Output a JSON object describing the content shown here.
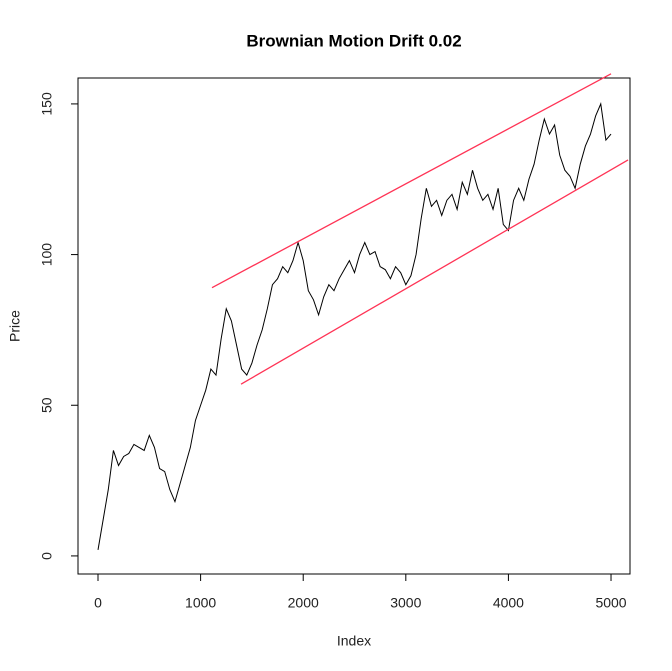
{
  "chart_data": {
    "type": "line",
    "title": "Brownian Motion Drift 0.02",
    "x_label": "Index",
    "y_label": "Price",
    "xlim": [
      -195,
      5185
    ],
    "ylim": [
      -6,
      158.6
    ],
    "xticks": [
      0,
      1000,
      2000,
      3000,
      4000,
      5000
    ],
    "yticks": [
      0,
      50,
      100,
      150
    ],
    "x": [
      0,
      50,
      100,
      150,
      200,
      250,
      300,
      350,
      400,
      450,
      500,
      550,
      600,
      650,
      700,
      750,
      800,
      850,
      900,
      950,
      1000,
      1050,
      1100,
      1150,
      1200,
      1250,
      1300,
      1350,
      1400,
      1450,
      1500,
      1550,
      1600,
      1650,
      1700,
      1750,
      1800,
      1850,
      1900,
      1950,
      2000,
      2050,
      2100,
      2150,
      2200,
      2250,
      2300,
      2350,
      2400,
      2450,
      2500,
      2550,
      2600,
      2650,
      2700,
      2750,
      2800,
      2850,
      2900,
      2950,
      3000,
      3050,
      3100,
      3150,
      3200,
      3250,
      3300,
      3350,
      3400,
      3450,
      3500,
      3550,
      3600,
      3650,
      3700,
      3750,
      3800,
      3850,
      3900,
      3950,
      4000,
      4050,
      4100,
      4150,
      4200,
      4250,
      4300,
      4350,
      4400,
      4450,
      4500,
      4550,
      4600,
      4650,
      4700,
      4750,
      4800,
      4850,
      4900,
      4950,
      5000
    ],
    "series": [
      {
        "color": "#000000",
        "values": [
          2,
          12,
          22,
          35,
          30,
          33,
          34,
          37,
          36,
          35,
          40,
          36,
          29,
          28,
          22,
          18,
          24,
          30,
          36,
          45,
          50,
          55,
          62,
          60,
          72,
          82,
          78,
          70,
          62,
          60,
          64,
          70,
          75,
          82,
          90,
          92,
          96,
          94,
          98,
          104,
          98,
          88,
          85,
          80,
          86,
          90,
          88,
          92,
          95,
          98,
          94,
          100,
          104,
          100,
          101,
          96,
          95,
          92,
          96,
          94,
          90,
          93,
          100,
          112,
          122,
          116,
          118,
          113,
          118,
          120,
          115,
          124,
          120,
          128,
          122,
          118,
          120,
          115,
          122,
          110,
          108,
          118,
          122,
          118,
          125,
          130,
          138,
          145,
          140,
          143,
          133,
          128,
          126,
          122,
          130,
          136,
          140,
          146,
          150,
          138,
          140
        ]
      },
      {
        "color": "#ff3355",
        "x": [
          1111,
          5000
        ],
        "values": [
          89,
          160
        ]
      },
      {
        "color": "#ff3355",
        "x": [
          1394,
          5166
        ],
        "values": [
          57,
          131.4
        ]
      }
    ]
  }
}
